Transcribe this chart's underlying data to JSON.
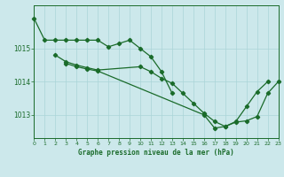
{
  "title": "Graphe pression niveau de la mer (hPa)",
  "background_color": "#cce8eb",
  "grid_color": "#aad4d8",
  "line_color": "#1a6b2a",
  "xlim": [
    0,
    23
  ],
  "ylim": [
    1012.3,
    1016.3
  ],
  "yticks": [
    1013,
    1014,
    1015
  ],
  "xticks": [
    0,
    1,
    2,
    3,
    4,
    5,
    6,
    7,
    8,
    9,
    10,
    11,
    12,
    13,
    14,
    15,
    16,
    17,
    18,
    19,
    20,
    21,
    22,
    23
  ],
  "series1_x": [
    0,
    1,
    2,
    3,
    4,
    5,
    6,
    7,
    8,
    9,
    10,
    11,
    12,
    13
  ],
  "series1_y": [
    1015.9,
    1015.25,
    1015.25,
    1015.25,
    1015.25,
    1015.25,
    1015.25,
    1015.05,
    1015.15,
    1015.25,
    1015.0,
    1014.75,
    1014.3,
    1013.65
  ],
  "series2_x": [
    2,
    3,
    4,
    5,
    6,
    10,
    11,
    12,
    13,
    14,
    15,
    16,
    17,
    18,
    19,
    20,
    21,
    22
  ],
  "series2_y": [
    1014.8,
    1014.6,
    1014.5,
    1014.42,
    1014.35,
    1014.45,
    1014.3,
    1014.1,
    1013.95,
    1013.65,
    1013.35,
    1013.05,
    1012.8,
    1012.65,
    1012.8,
    1013.25,
    1013.7,
    1014.0
  ],
  "series3_x": [
    3,
    4,
    5,
    6,
    16,
    17,
    18,
    19,
    20,
    21,
    22,
    23
  ],
  "series3_y": [
    1014.55,
    1014.45,
    1014.38,
    1014.32,
    1013.0,
    1012.6,
    1012.65,
    1012.78,
    1012.82,
    1012.95,
    1013.65,
    1014.0
  ]
}
